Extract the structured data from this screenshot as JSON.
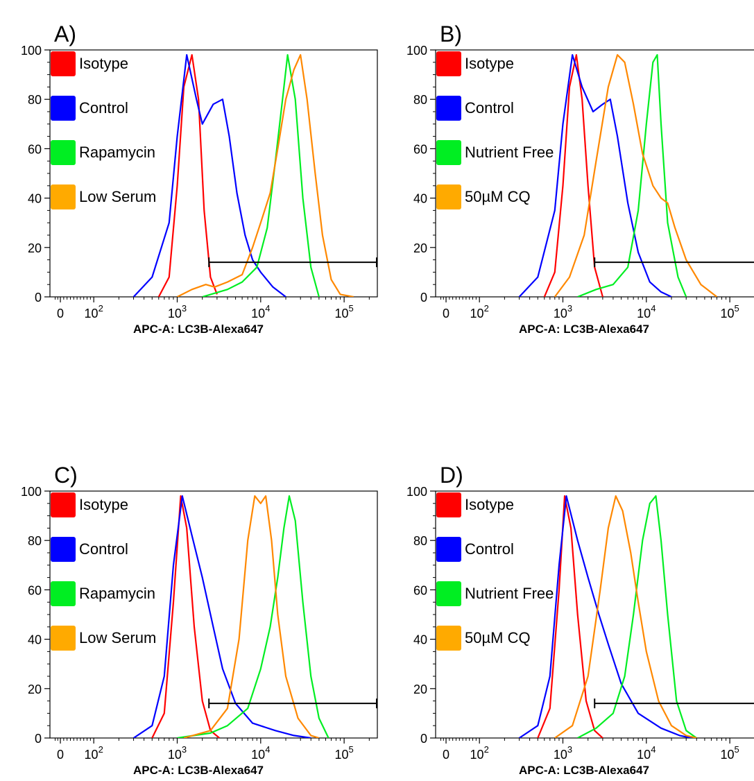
{
  "colors": {
    "Isotype": "#ff0000",
    "Control": "#0000ff",
    "Rapamycin": "#00ee22",
    "Nutrient Free": "#00ee22",
    "Low Serum": "#ff8800",
    "50µM CQ": "#ff8800",
    "legend_orange": "#ffaa00"
  },
  "chart_data": [
    {
      "panel": "A)",
      "type": "line",
      "xlabel": "APC-A: LC3B-Alexa647",
      "x_scale": "biexponential",
      "xlim": [
        -200,
        250000
      ],
      "ylim": [
        0,
        100
      ],
      "y_ticks": [
        "0",
        "20",
        "40",
        "60",
        "80",
        "100"
      ],
      "x_ticks": [
        "0",
        "10^2",
        "10^3",
        "10^4",
        "10^5"
      ],
      "legend": [
        "Isotype",
        "Control",
        "Rapamycin",
        "Low Serum"
      ],
      "gate": {
        "from": 2400,
        "to": 250000,
        "y": 14
      },
      "series": [
        {
          "name": "Isotype",
          "points": [
            [
              600,
              0
            ],
            [
              800,
              8
            ],
            [
              1000,
              45
            ],
            [
              1200,
              85
            ],
            [
              1500,
              98
            ],
            [
              1800,
              80
            ],
            [
              2100,
              35
            ],
            [
              2500,
              8
            ],
            [
              3000,
              1
            ]
          ]
        },
        {
          "name": "Control",
          "points": [
            [
              300,
              0
            ],
            [
              500,
              8
            ],
            [
              800,
              30
            ],
            [
              1000,
              65
            ],
            [
              1300,
              98
            ],
            [
              1700,
              80
            ],
            [
              2000,
              70
            ],
            [
              2700,
              78
            ],
            [
              3500,
              80
            ],
            [
              4200,
              65
            ],
            [
              5200,
              42
            ],
            [
              6500,
              25
            ],
            [
              8000,
              15
            ],
            [
              10000,
              10
            ],
            [
              14000,
              4
            ],
            [
              20000,
              0
            ]
          ]
        },
        {
          "name": "Rapamycin",
          "points": [
            [
              2000,
              0
            ],
            [
              4000,
              3
            ],
            [
              6000,
              6
            ],
            [
              9000,
              12
            ],
            [
              12000,
              28
            ],
            [
              15000,
              55
            ],
            [
              18000,
              78
            ],
            [
              21000,
              98
            ],
            [
              26000,
              80
            ],
            [
              32000,
              40
            ],
            [
              40000,
              12
            ],
            [
              50000,
              0
            ]
          ]
        },
        {
          "name": "Low Serum",
          "points": [
            [
              1000,
              0
            ],
            [
              1500,
              3
            ],
            [
              2200,
              5
            ],
            [
              2800,
              4
            ],
            [
              4000,
              6
            ],
            [
              6000,
              9
            ],
            [
              8000,
              20
            ],
            [
              10000,
              30
            ],
            [
              13000,
              42
            ],
            [
              16000,
              60
            ],
            [
              20000,
              80
            ],
            [
              25000,
              92
            ],
            [
              30000,
              98
            ],
            [
              36000,
              80
            ],
            [
              45000,
              50
            ],
            [
              55000,
              25
            ],
            [
              70000,
              7
            ],
            [
              90000,
              1
            ],
            [
              130000,
              0
            ]
          ]
        }
      ]
    },
    {
      "panel": "B)",
      "type": "line",
      "xlabel": "APC-A: LC3B-Alexa647",
      "x_scale": "biexponential",
      "xlim": [
        -200,
        250000
      ],
      "ylim": [
        0,
        100
      ],
      "y_ticks": [
        "0",
        "20",
        "40",
        "60",
        "80",
        "100"
      ],
      "x_ticks": [
        "0",
        "10^2",
        "10^3",
        "10^4",
        "10^5"
      ],
      "legend": [
        "Isotype",
        "Control",
        "Nutrient Free",
        "50µM CQ"
      ],
      "gate": {
        "from": 2400,
        "to": 250000,
        "y": 14
      },
      "series": [
        {
          "name": "Isotype",
          "points": [
            [
              600,
              0
            ],
            [
              800,
              10
            ],
            [
              1000,
              45
            ],
            [
              1200,
              85
            ],
            [
              1450,
              98
            ],
            [
              1700,
              80
            ],
            [
              2000,
              45
            ],
            [
              2400,
              12
            ],
            [
              3000,
              0
            ]
          ]
        },
        {
          "name": "Control",
          "points": [
            [
              300,
              0
            ],
            [
              500,
              8
            ],
            [
              800,
              35
            ],
            [
              1000,
              70
            ],
            [
              1300,
              98
            ],
            [
              1700,
              85
            ],
            [
              2300,
              75
            ],
            [
              3000,
              78
            ],
            [
              3700,
              80
            ],
            [
              4500,
              65
            ],
            [
              6000,
              38
            ],
            [
              8000,
              18
            ],
            [
              11000,
              6
            ],
            [
              15000,
              2
            ],
            [
              20000,
              0
            ]
          ]
        },
        {
          "name": "Nutrient Free",
          "points": [
            [
              1500,
              0
            ],
            [
              2500,
              3
            ],
            [
              4000,
              5
            ],
            [
              6000,
              12
            ],
            [
              8000,
              35
            ],
            [
              10000,
              70
            ],
            [
              12000,
              95
            ],
            [
              13500,
              98
            ],
            [
              15000,
              70
            ],
            [
              18000,
              30
            ],
            [
              24000,
              8
            ],
            [
              30000,
              0
            ]
          ]
        },
        {
          "name": "50µM CQ",
          "points": [
            [
              800,
              0
            ],
            [
              1200,
              8
            ],
            [
              1800,
              25
            ],
            [
              2500,
              55
            ],
            [
              3500,
              85
            ],
            [
              4500,
              98
            ],
            [
              5500,
              95
            ],
            [
              7000,
              78
            ],
            [
              9000,
              58
            ],
            [
              12000,
              45
            ],
            [
              15000,
              40
            ],
            [
              18000,
              38
            ],
            [
              22000,
              28
            ],
            [
              30000,
              15
            ],
            [
              45000,
              5
            ],
            [
              70000,
              0
            ]
          ]
        }
      ]
    },
    {
      "panel": "C)",
      "type": "line",
      "xlabel": "APC-A: LC3B-Alexa647",
      "x_scale": "biexponential",
      "xlim": [
        -200,
        250000
      ],
      "ylim": [
        0,
        100
      ],
      "y_ticks": [
        "0",
        "20",
        "40",
        "60",
        "80",
        "100"
      ],
      "x_ticks": [
        "0",
        "10^2",
        "10^3",
        "10^4",
        "10^5"
      ],
      "legend": [
        "Isotype",
        "Control",
        "Rapamycin",
        "Low Serum"
      ],
      "gate": {
        "from": 2400,
        "to": 250000,
        "y": 14
      },
      "series": [
        {
          "name": "Isotype",
          "points": [
            [
              500,
              0
            ],
            [
              700,
              10
            ],
            [
              900,
              55
            ],
            [
              1100,
              98
            ],
            [
              1300,
              85
            ],
            [
              1600,
              45
            ],
            [
              2000,
              15
            ],
            [
              2500,
              3
            ],
            [
              3200,
              0
            ]
          ]
        },
        {
          "name": "Control",
          "points": [
            [
              300,
              0
            ],
            [
              500,
              5
            ],
            [
              700,
              25
            ],
            [
              900,
              70
            ],
            [
              1150,
              98
            ],
            [
              1500,
              82
            ],
            [
              2000,
              65
            ],
            [
              2700,
              45
            ],
            [
              3500,
              28
            ],
            [
              5000,
              14
            ],
            [
              8000,
              6
            ],
            [
              15000,
              3
            ],
            [
              25000,
              1
            ],
            [
              40000,
              0
            ]
          ]
        },
        {
          "name": "Rapamycin",
          "points": [
            [
              1000,
              0
            ],
            [
              2500,
              2
            ],
            [
              4000,
              5
            ],
            [
              7000,
              12
            ],
            [
              10000,
              28
            ],
            [
              13000,
              45
            ],
            [
              16000,
              65
            ],
            [
              19000,
              85
            ],
            [
              22000,
              98
            ],
            [
              26000,
              88
            ],
            [
              32000,
              55
            ],
            [
              40000,
              25
            ],
            [
              50000,
              8
            ],
            [
              65000,
              0
            ]
          ]
        },
        {
          "name": "Low Serum",
          "points": [
            [
              1200,
              0
            ],
            [
              2500,
              3
            ],
            [
              4000,
              12
            ],
            [
              5500,
              40
            ],
            [
              7000,
              80
            ],
            [
              8500,
              98
            ],
            [
              10000,
              95
            ],
            [
              11500,
              98
            ],
            [
              13500,
              80
            ],
            [
              16000,
              50
            ],
            [
              20000,
              25
            ],
            [
              28000,
              8
            ],
            [
              40000,
              1
            ],
            [
              50000,
              0
            ]
          ]
        }
      ]
    },
    {
      "panel": "D)",
      "type": "line",
      "xlabel": "APC-A: LC3B-Alexa647",
      "x_scale": "biexponential",
      "xlim": [
        -200,
        250000
      ],
      "ylim": [
        0,
        100
      ],
      "y_ticks": [
        "0",
        "20",
        "40",
        "60",
        "80",
        "100"
      ],
      "x_ticks": [
        "0",
        "10^2",
        "10^3",
        "10^4",
        "10^5"
      ],
      "legend": [
        "Isotype",
        "Control",
        "Nutrient Free",
        "50µM CQ"
      ],
      "gate": {
        "from": 2400,
        "to": 250000,
        "y": 14
      },
      "series": [
        {
          "name": "Isotype",
          "points": [
            [
              500,
              0
            ],
            [
              700,
              12
            ],
            [
              900,
              60
            ],
            [
              1050,
              98
            ],
            [
              1250,
              85
            ],
            [
              1500,
              50
            ],
            [
              1900,
              15
            ],
            [
              2400,
              3
            ],
            [
              3000,
              0
            ]
          ]
        },
        {
          "name": "Control",
          "points": [
            [
              300,
              0
            ],
            [
              500,
              5
            ],
            [
              700,
              25
            ],
            [
              900,
              70
            ],
            [
              1100,
              98
            ],
            [
              1500,
              80
            ],
            [
              2000,
              65
            ],
            [
              2700,
              50
            ],
            [
              3500,
              38
            ],
            [
              5000,
              22
            ],
            [
              8000,
              10
            ],
            [
              15000,
              4
            ],
            [
              25000,
              1
            ],
            [
              35000,
              0
            ]
          ]
        },
        {
          "name": "Nutrient Free",
          "points": [
            [
              1500,
              0
            ],
            [
              2500,
              4
            ],
            [
              4000,
              10
            ],
            [
              5500,
              25
            ],
            [
              7000,
              50
            ],
            [
              9000,
              80
            ],
            [
              11000,
              95
            ],
            [
              13000,
              98
            ],
            [
              15000,
              80
            ],
            [
              18000,
              50
            ],
            [
              23000,
              15
            ],
            [
              30000,
              3
            ],
            [
              40000,
              0
            ]
          ]
        },
        {
          "name": "50µM CQ",
          "points": [
            [
              800,
              0
            ],
            [
              1300,
              5
            ],
            [
              2000,
              25
            ],
            [
              2800,
              60
            ],
            [
              3500,
              85
            ],
            [
              4300,
              98
            ],
            [
              5200,
              92
            ],
            [
              6500,
              75
            ],
            [
              8000,
              55
            ],
            [
              10000,
              35
            ],
            [
              14000,
              15
            ],
            [
              20000,
              5
            ],
            [
              30000,
              1
            ],
            [
              40000,
              0
            ]
          ]
        }
      ]
    }
  ]
}
